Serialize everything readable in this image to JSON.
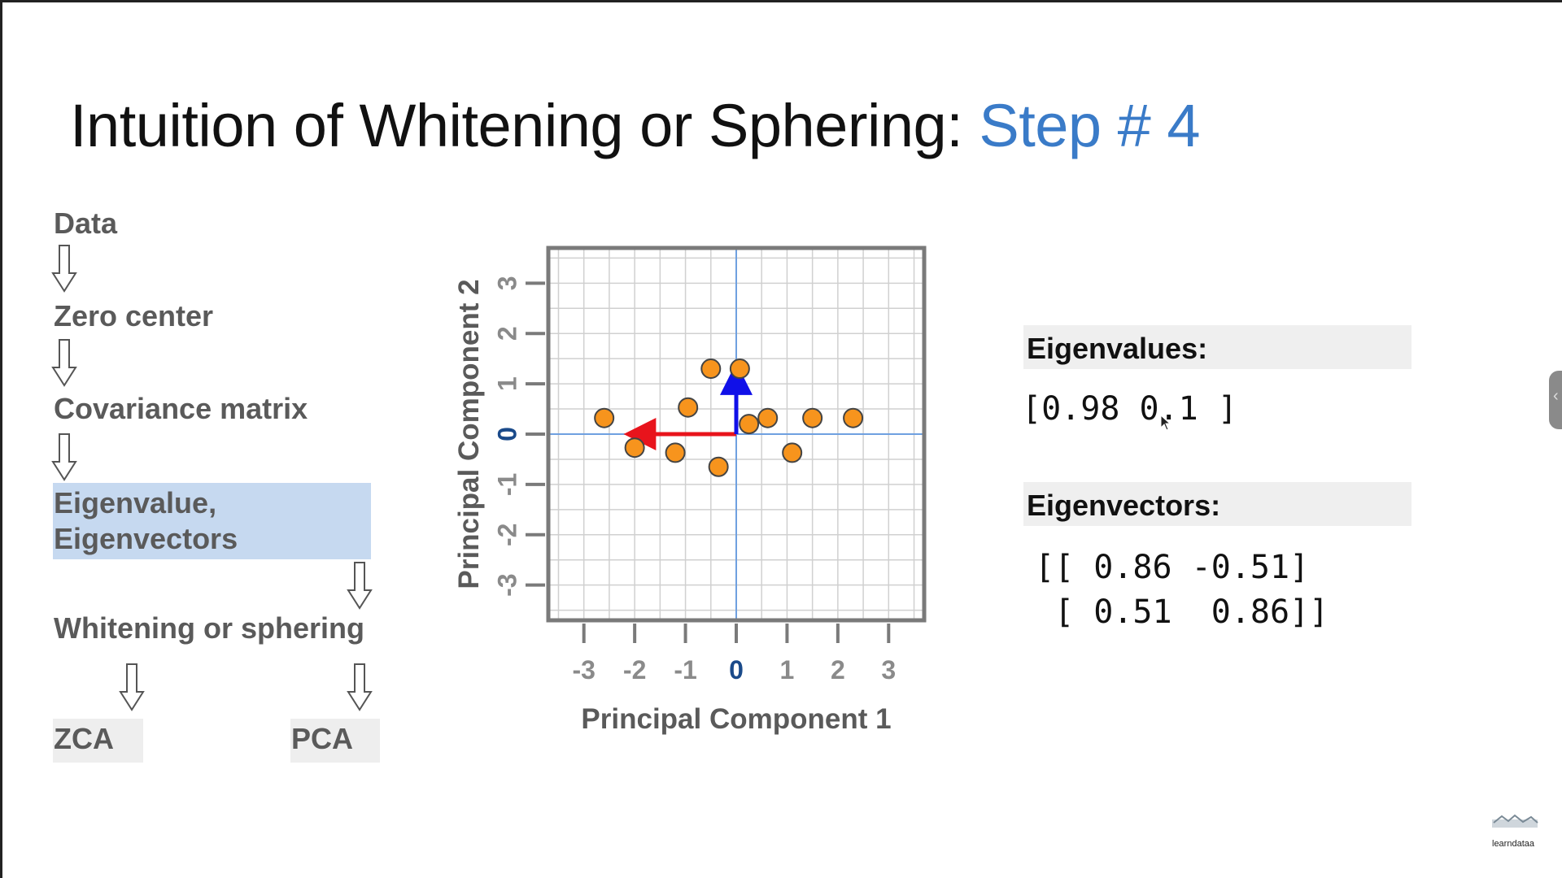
{
  "slide": {
    "title_main": "Intuition of Whitening or Sphering: ",
    "title_accent": "Step # 4",
    "accent_color": "#3a7bc8"
  },
  "flow": {
    "data": "Data",
    "zero_center": "Zero center",
    "covariance": "Covariance matrix",
    "eigen_line1": "Eigenvalue,",
    "eigen_line2": "Eigenvectors",
    "whitening": "Whitening or sphering",
    "zca": "ZCA",
    "pca": "PCA",
    "highlight_color": "#c6d9f0",
    "arrow_icon": "hollow-down-arrow-icon"
  },
  "chart_data": {
    "type": "scatter",
    "title": "",
    "xlabel": "Principal Component 1",
    "ylabel": "Principal Component 2",
    "xlim": [
      -3.7,
      3.7
    ],
    "ylim": [
      -3.7,
      3.7
    ],
    "x_ticks": [
      -3,
      -2,
      -1,
      0,
      1,
      2,
      3
    ],
    "y_ticks": [
      -3,
      -2,
      -1,
      0,
      1,
      2,
      3
    ],
    "grid": true,
    "points": [
      {
        "x": -2.6,
        "y": 0.32
      },
      {
        "x": -2.0,
        "y": -0.27
      },
      {
        "x": -1.2,
        "y": -0.37
      },
      {
        "x": -0.95,
        "y": 0.53
      },
      {
        "x": -0.5,
        "y": 1.3
      },
      {
        "x": -0.35,
        "y": -0.65
      },
      {
        "x": 0.07,
        "y": 1.3
      },
      {
        "x": 0.25,
        "y": 0.2
      },
      {
        "x": 0.62,
        "y": 0.32
      },
      {
        "x": 1.1,
        "y": -0.37
      },
      {
        "x": 1.5,
        "y": 0.32
      },
      {
        "x": 2.3,
        "y": 0.32
      }
    ],
    "point_color": "#f7941d",
    "vectors": [
      {
        "dx": -1.9,
        "dy": 0,
        "color": "#e8141c"
      },
      {
        "dx": 0,
        "dy": 1.1,
        "color": "#1010e8"
      }
    ]
  },
  "eigen": {
    "values_label": "Eigenvalues:",
    "values": "[0.98 0.1 ]",
    "vectors_label": "Eigenvectors:",
    "vectors_line1": "[[ 0.86 -0.51]",
    "vectors_line2": " [ 0.51  0.86]]"
  },
  "branding": {
    "logo_text": "learndataa",
    "side_tab_icon": "chevron-left-icon"
  }
}
